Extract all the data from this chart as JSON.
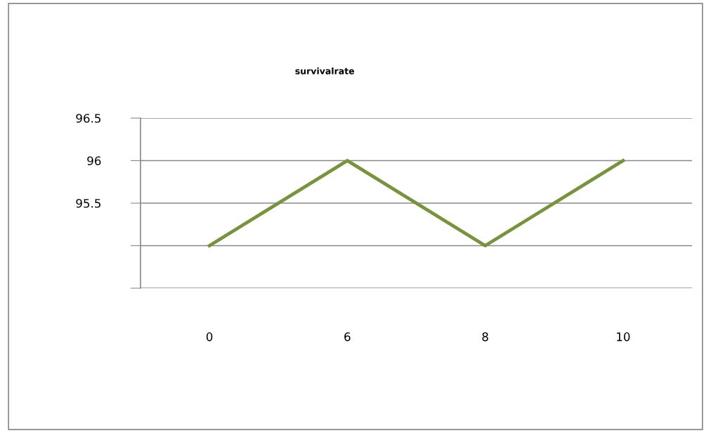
{
  "chart_data": {
    "type": "line",
    "title": "survivalrate",
    "categories": [
      "0",
      "6",
      "8",
      "10"
    ],
    "series": [
      {
        "color": "#77933c",
        "values": [
          95,
          96,
          95,
          96
        ]
      }
    ],
    "ylim": [
      94.5,
      96.5
    ],
    "yticks": [
      96.5,
      96,
      95.5,
      {
        "value": 95,
        "label": null
      },
      {
        "value": 94.5,
        "label": null
      }
    ],
    "grid": "y",
    "legend": false,
    "marker": "none",
    "line_style": "solid"
  }
}
